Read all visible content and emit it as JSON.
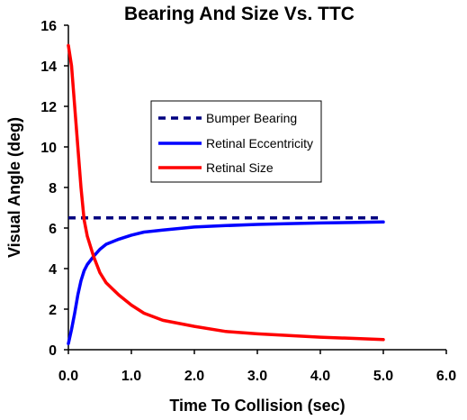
{
  "chart_data": {
    "type": "line",
    "title": "Bearing And Size Vs. TTC",
    "xlabel": "Time To Collision (sec)",
    "ylabel": "Visual Angle (deg)",
    "xlim": [
      0,
      6
    ],
    "ylim": [
      0,
      16
    ],
    "xticks": [
      "0.0",
      "1.0",
      "2.0",
      "3.0",
      "4.0",
      "5.0",
      "6.0"
    ],
    "yticks": [
      "0",
      "2",
      "4",
      "6",
      "8",
      "10",
      "12",
      "14",
      "16"
    ],
    "grid": false,
    "legend_position": "center",
    "series": [
      {
        "name": "Bumper Bearing",
        "color": "#000080",
        "style": "dashed",
        "x": [
          0.0,
          5.0
        ],
        "y": [
          6.5,
          6.5
        ]
      },
      {
        "name": "Retinal Eccentricity",
        "color": "#0000ff",
        "style": "solid",
        "x": [
          0.0,
          0.05,
          0.1,
          0.15,
          0.2,
          0.25,
          0.3,
          0.4,
          0.5,
          0.6,
          0.8,
          1.0,
          1.2,
          1.5,
          2.0,
          2.5,
          3.0,
          3.5,
          4.0,
          4.5,
          5.0
        ],
        "y": [
          0.3,
          1.0,
          1.8,
          2.7,
          3.4,
          3.9,
          4.2,
          4.6,
          4.95,
          5.2,
          5.45,
          5.65,
          5.8,
          5.9,
          6.05,
          6.12,
          6.18,
          6.22,
          6.25,
          6.27,
          6.3
        ]
      },
      {
        "name": "Retinal Size",
        "color": "#ff0000",
        "style": "solid",
        "x": [
          0.0,
          0.05,
          0.1,
          0.15,
          0.2,
          0.25,
          0.3,
          0.4,
          0.5,
          0.6,
          0.8,
          1.0,
          1.2,
          1.5,
          2.0,
          2.5,
          3.0,
          3.5,
          4.0,
          4.5,
          5.0
        ],
        "y": [
          15.0,
          14.0,
          12.0,
          10.0,
          8.0,
          6.4,
          5.6,
          4.6,
          3.8,
          3.3,
          2.7,
          2.2,
          1.8,
          1.45,
          1.15,
          0.9,
          0.78,
          0.7,
          0.62,
          0.56,
          0.5
        ]
      }
    ]
  }
}
